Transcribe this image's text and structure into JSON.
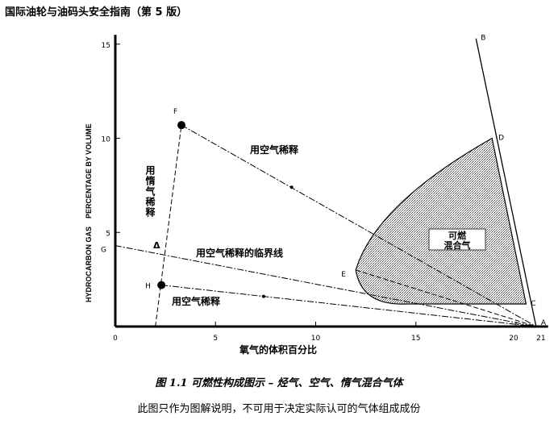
{
  "header": {
    "title": "国际油轮与油码头安全指南（第 5 版）"
  },
  "chart_data": {
    "type": "diagram",
    "xlabel": "氧气的体积百分比",
    "ylabel": "HYDROCARBON GAS    PERCENTAGE BY VOLUME",
    "xlim": [
      0,
      21
    ],
    "ylim": [
      0,
      15
    ],
    "xticks": [
      "0",
      "5",
      "10",
      "15",
      "20",
      "21"
    ],
    "yticks": [
      "5",
      "10",
      "15"
    ],
    "points": [
      {
        "label": "A",
        "x": 21,
        "y": 0
      },
      {
        "label": "B",
        "x": 18.0,
        "y": 15.3
      },
      {
        "label": "C",
        "x": 20.5,
        "y": 1.2
      },
      {
        "label": "D",
        "x": 18.8,
        "y": 10.0
      },
      {
        "label": "E",
        "x": 12.0,
        "y": 3.0
      },
      {
        "label": "F",
        "x": 3.3,
        "y": 10.7
      },
      {
        "label": "G",
        "x": 0,
        "y": 4.3
      },
      {
        "label": "H",
        "x": 2.3,
        "y": 2.2
      }
    ],
    "region_label": [
      "可燃",
      "混合气"
    ],
    "annotations": {
      "air_dilution_upper": "用空气稀释",
      "inert_dilution": "用惰气稀释",
      "critical_line": "用空气稀释的临界线",
      "air_dilution_lower": "用空气稀释",
      "arrow_mark": "Δ"
    }
  },
  "caption": "图 1.1 可燃性构成图示 – 烃气、空气、惰气混合气体",
  "note": "此图只作为图解说明，不可用于决定实际认可的气体组成成份"
}
